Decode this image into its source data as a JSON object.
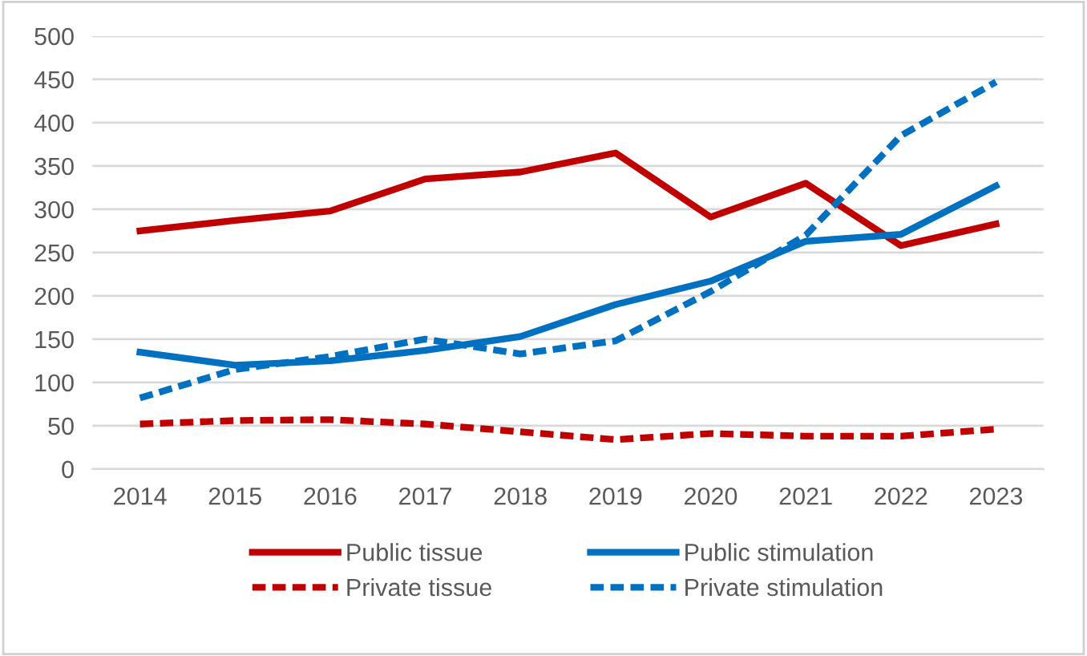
{
  "chart_data": {
    "type": "line",
    "categories": [
      "2014",
      "2015",
      "2016",
      "2017",
      "2018",
      "2019",
      "2020",
      "2021",
      "2022",
      "2023"
    ],
    "series": [
      {
        "name": "Public tissue",
        "color": "#c00000",
        "line_style": "solid",
        "values": [
          275,
          287,
          298,
          335,
          343,
          365,
          291,
          330,
          258,
          283
        ]
      },
      {
        "name": "Public stimulation",
        "color": "#0070c0",
        "line_style": "solid",
        "values": [
          135,
          120,
          125,
          137,
          153,
          190,
          217,
          263,
          271,
          327
        ]
      },
      {
        "name": "Private tissue",
        "color": "#c00000",
        "line_style": "dashed",
        "values": [
          52,
          56,
          57,
          52,
          43,
          34,
          41,
          38,
          38,
          46
        ]
      },
      {
        "name": "Private stimulation",
        "color": "#0070c0",
        "line_style": "dashed",
        "values": [
          82,
          115,
          130,
          150,
          133,
          148,
          205,
          270,
          385,
          447
        ]
      }
    ],
    "ylim": [
      0,
      500
    ],
    "yticks": [
      0,
      50,
      100,
      150,
      200,
      250,
      300,
      350,
      400,
      450,
      500
    ],
    "grid": "y",
    "legend": "bottom",
    "marker": "none"
  }
}
